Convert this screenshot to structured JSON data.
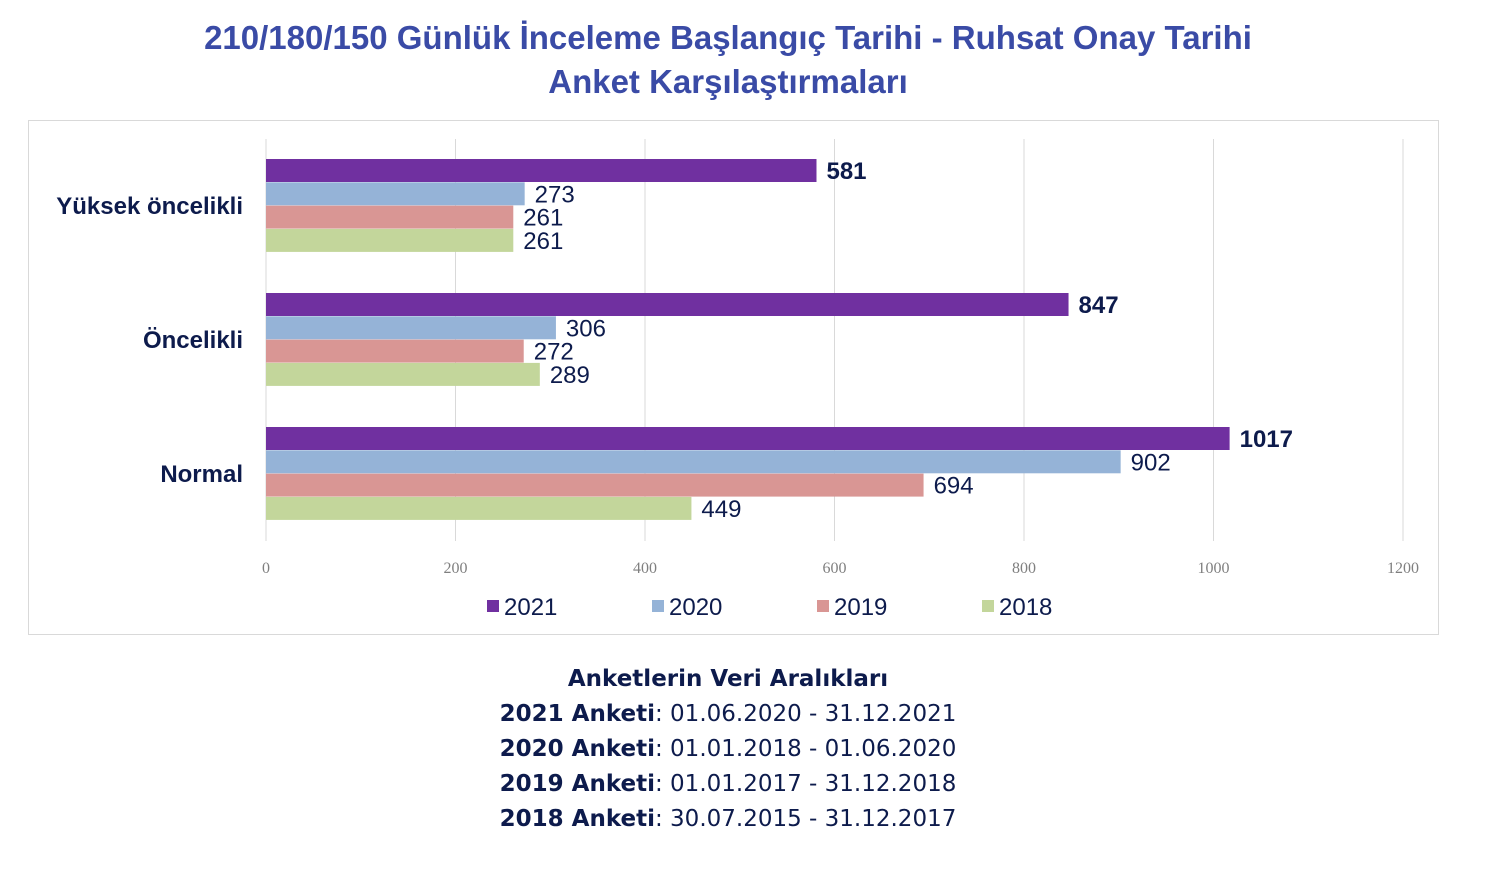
{
  "title_line1": "210/180/150 Günlük İnceleme Başlangıç Tarihi - Ruhsat Onay Tarihi",
  "title_line2": "Anket Karşılaştırmaları",
  "chart_data": {
    "type": "bar",
    "orientation": "horizontal",
    "categories": [
      "Yüksek öncelikli",
      "Öncelikli",
      "Normal"
    ],
    "series": [
      {
        "name": "2021",
        "color": "#7030a0",
        "values": [
          581,
          847,
          1017
        ]
      },
      {
        "name": "2020",
        "color": "#95b3d7",
        "values": [
          273,
          306,
          902
        ]
      },
      {
        "name": "2019",
        "color": "#d99694",
        "values": [
          261,
          272,
          694
        ]
      },
      {
        "name": "2018",
        "color": "#c3d69b",
        "values": [
          261,
          289,
          449
        ]
      }
    ],
    "xlim": [
      0,
      1200
    ],
    "xticks": [
      0,
      200,
      400,
      600,
      800,
      1000,
      1200
    ],
    "grid": "vertical",
    "legend_position": "bottom",
    "bold_series": "2021"
  },
  "notes": {
    "heading": "Anketlerin Veri Aralıkları",
    "rows": [
      {
        "label": "2021 Anketi",
        "range": "01.06.2020 - 31.12.2021"
      },
      {
        "label": "2020 Anketi",
        "range": "01.01.2018 - 01.06.2020"
      },
      {
        "label": "2019 Anketi",
        "range": "01.01.2017 - 31.12.2018"
      },
      {
        "label": "2018 Anketi",
        "range": "30.07.2015 - 31.12.2017"
      }
    ]
  }
}
